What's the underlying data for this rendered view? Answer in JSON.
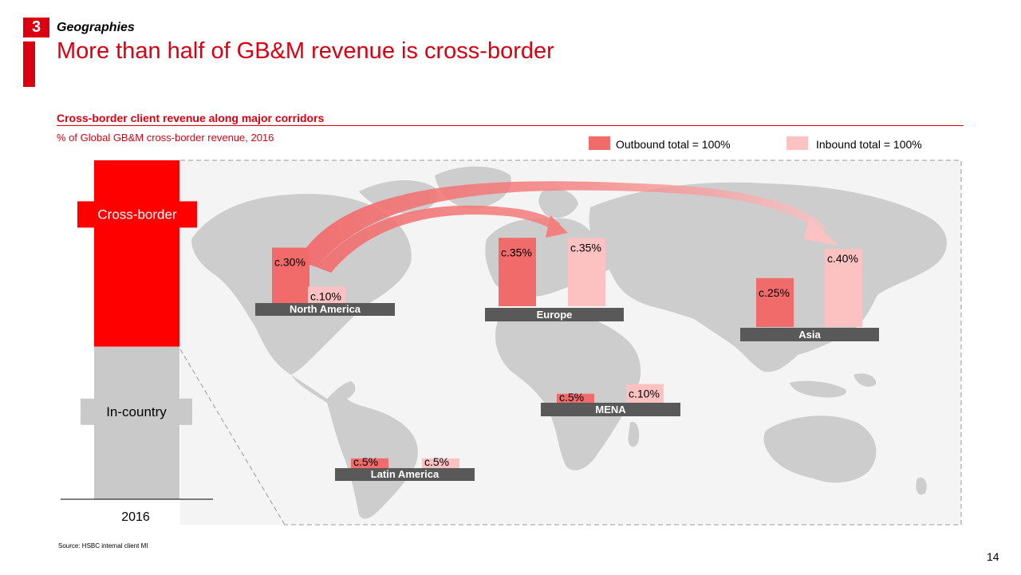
{
  "header": {
    "section_number": "3",
    "section_title": "Geographies",
    "headline": "More than half of GB&M revenue is cross-border"
  },
  "legend": {
    "outbound_label": "Outbound total = 100%",
    "inbound_label": "Inbound total = 100%",
    "outbound_color": "#f26b6b",
    "inbound_color": "#fcc2c2"
  },
  "chart_data": {
    "type": "bar",
    "title": "Cross-border client revenue along major corridors",
    "subtitle": "% of Global GB&M cross-border revenue, 2016",
    "stacked_bar": {
      "category": "2016",
      "segments": [
        {
          "name": "Cross-border",
          "share": 0.55,
          "color": "#ff0000"
        },
        {
          "name": "In-country",
          "share": 0.45,
          "color": "#c9c9c9"
        }
      ]
    },
    "regions": [
      {
        "name": "North America",
        "outbound": 30,
        "inbound": 10,
        "outbound_label": "c.30%",
        "inbound_label": "c.10%"
      },
      {
        "name": "Europe",
        "outbound": 35,
        "inbound": 35,
        "outbound_label": "c.35%",
        "inbound_label": "c.35%"
      },
      {
        "name": "Asia",
        "outbound": 25,
        "inbound": 40,
        "outbound_label": "c.25%",
        "inbound_label": "c.40%"
      },
      {
        "name": "MENA",
        "outbound": 5,
        "inbound": 10,
        "outbound_label": "c.5%",
        "inbound_label": "c.10%"
      },
      {
        "name": "Latin America",
        "outbound": 5,
        "inbound": 5,
        "outbound_label": "c.5%",
        "inbound_label": "c.5%"
      }
    ]
  },
  "footer": {
    "source": "Source: HSBC internal client MI",
    "page_number": "14"
  }
}
